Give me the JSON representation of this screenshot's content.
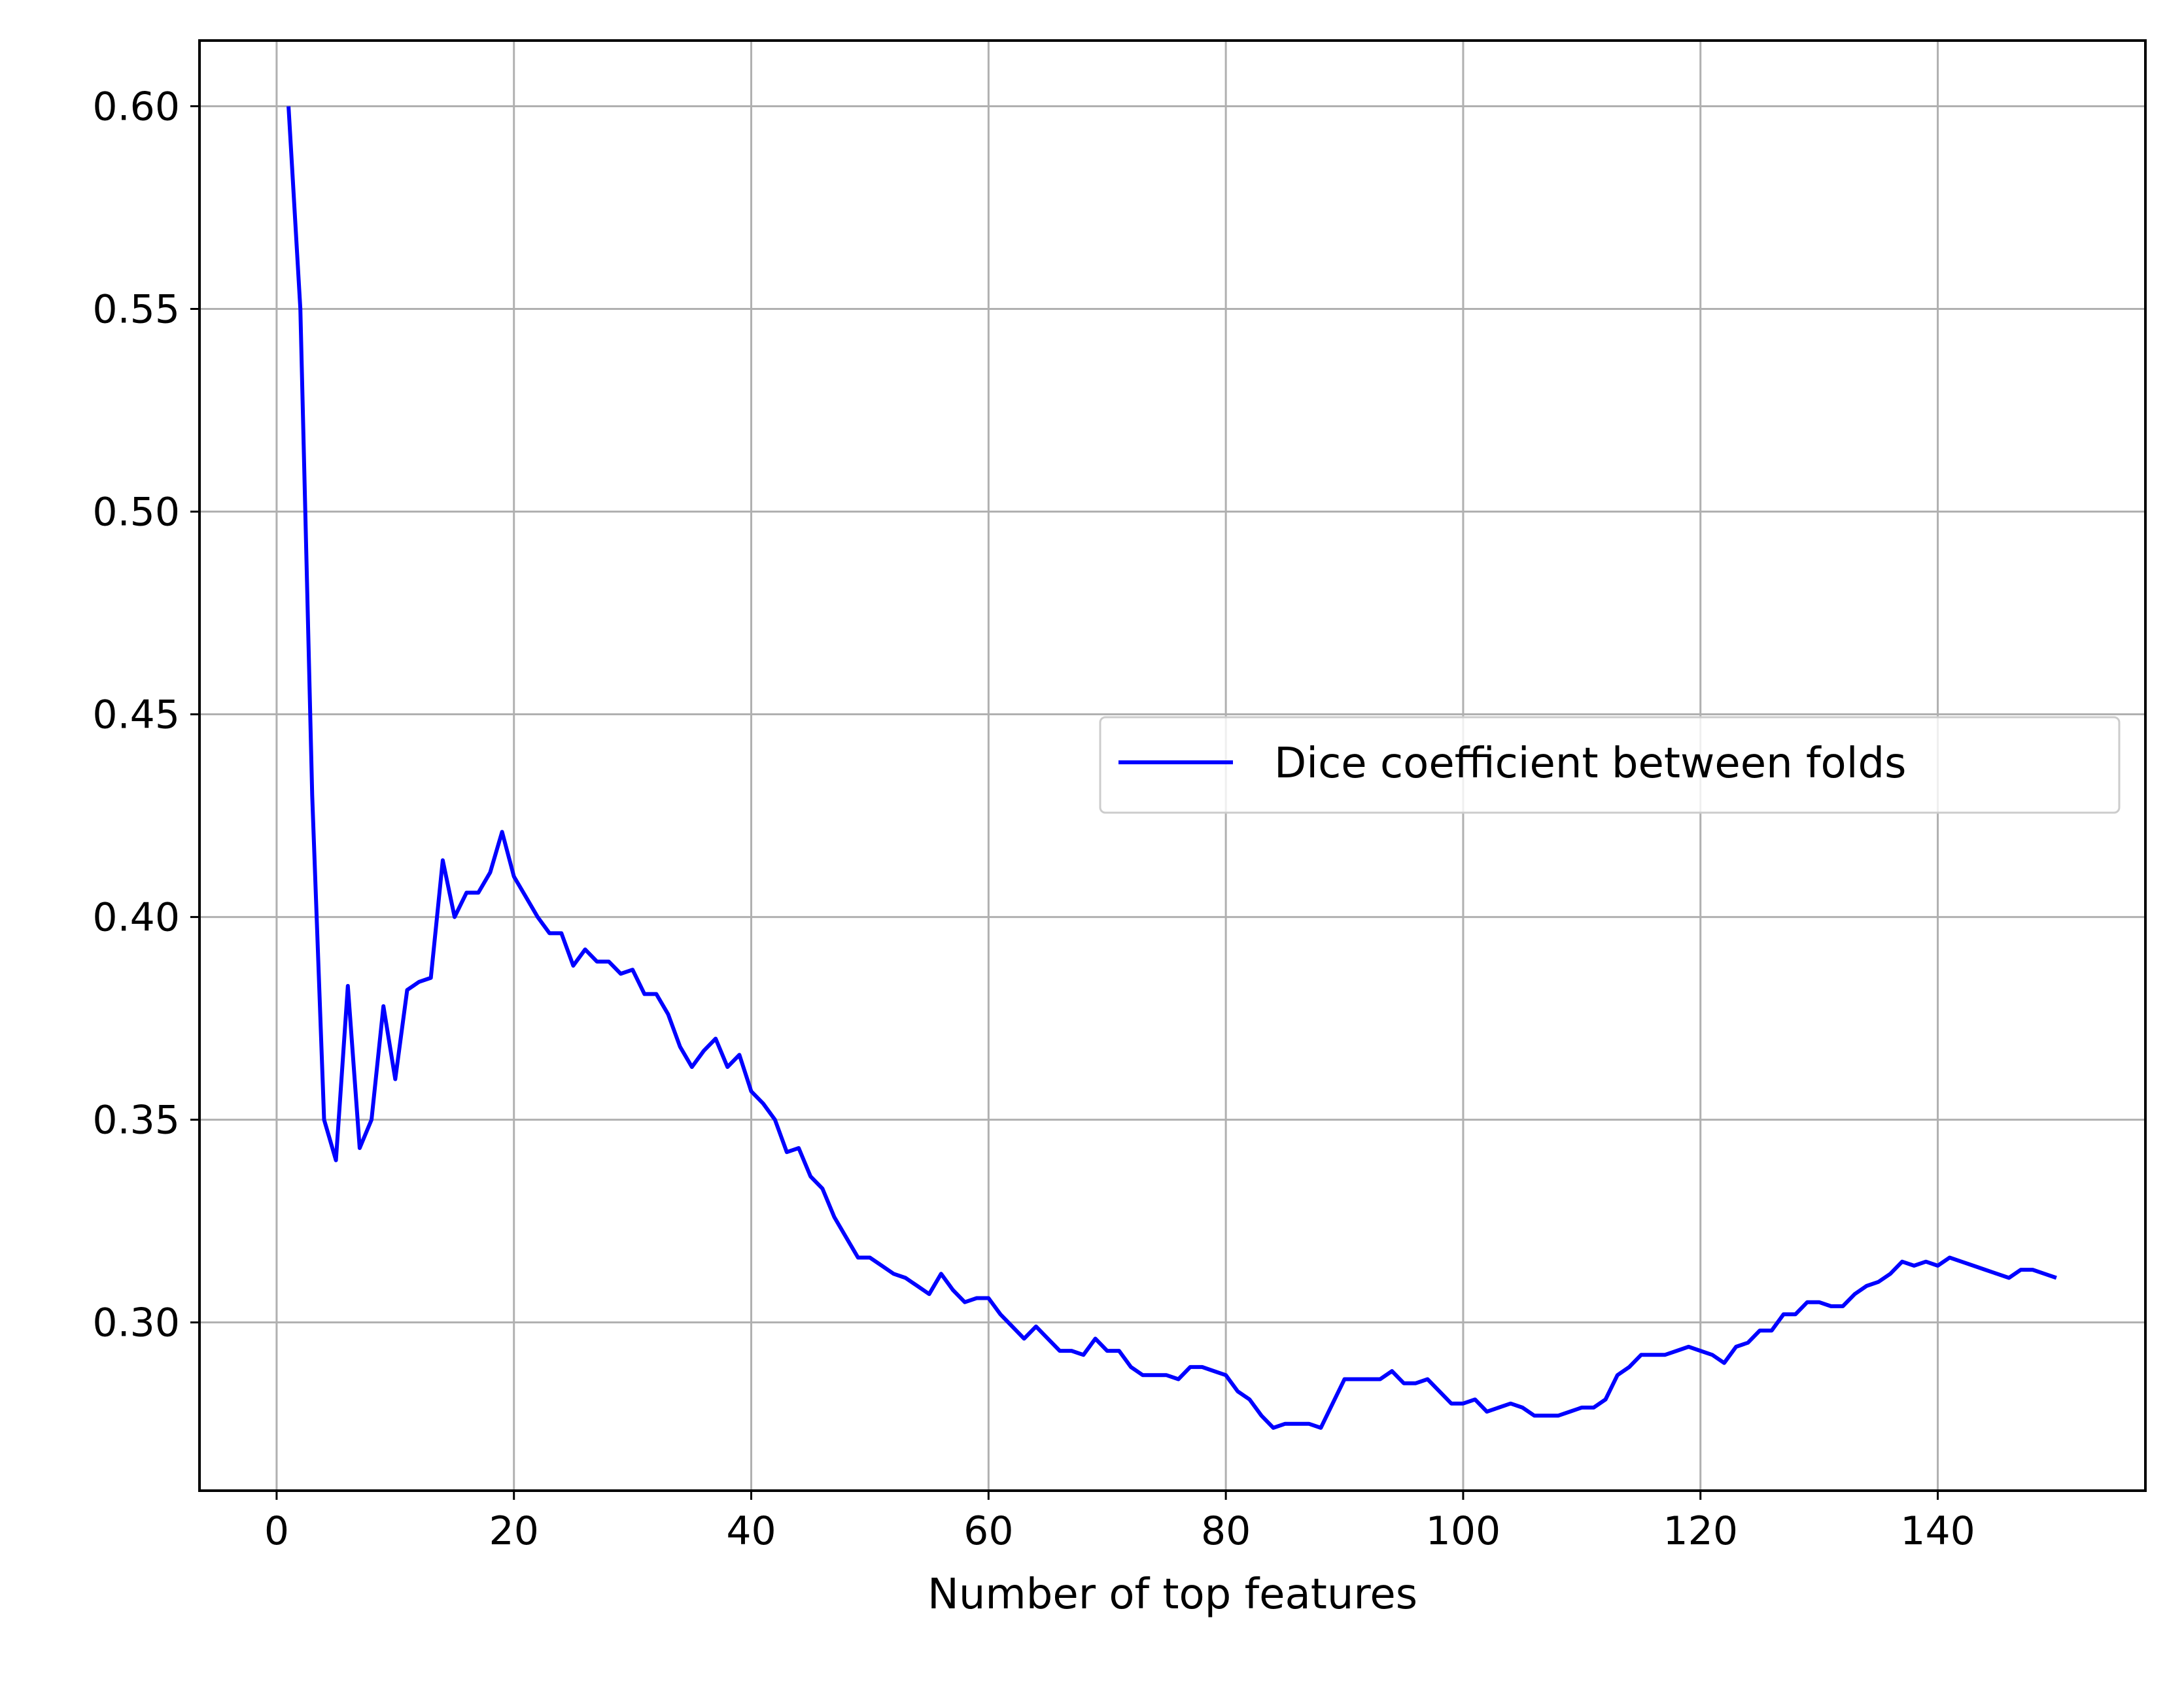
{
  "chart_data": {
    "type": "line",
    "title": "",
    "xlabel": "Number of top features",
    "ylabel": "",
    "xlim": [
      -6.5,
      157.5
    ],
    "ylim": [
      0.2585,
      0.6162
    ],
    "xticks": [
      0,
      20,
      40,
      60,
      80,
      100,
      120,
      140
    ],
    "xtick_labels": [
      "0",
      "20",
      "40",
      "60",
      "80",
      "100",
      "120",
      "140"
    ],
    "yticks": [
      0.3,
      0.35,
      0.4,
      0.45,
      0.5,
      0.55,
      0.6
    ],
    "ytick_labels": [
      "0.30",
      "0.35",
      "0.40",
      "0.45",
      "0.50",
      "0.55",
      "0.60"
    ],
    "grid": true,
    "legend_position": "center-right",
    "series": [
      {
        "name": "Dice coefficient between folds",
        "color": "#0000ff",
        "x": [
          1,
          2,
          3,
          4,
          5,
          6,
          7,
          8,
          9,
          10,
          11,
          12,
          13,
          14,
          15,
          16,
          17,
          18,
          19,
          20,
          21,
          22,
          23,
          24,
          25,
          26,
          27,
          28,
          29,
          30,
          31,
          32,
          33,
          34,
          35,
          36,
          37,
          38,
          39,
          40,
          41,
          42,
          43,
          44,
          45,
          46,
          47,
          48,
          49,
          50,
          51,
          52,
          53,
          54,
          55,
          56,
          57,
          58,
          59,
          60,
          61,
          62,
          63,
          64,
          65,
          66,
          67,
          68,
          69,
          70,
          71,
          72,
          73,
          74,
          75,
          76,
          77,
          78,
          79,
          80,
          81,
          82,
          83,
          84,
          85,
          86,
          87,
          88,
          89,
          90,
          91,
          92,
          93,
          94,
          95,
          96,
          97,
          98,
          99,
          100,
          101,
          102,
          103,
          104,
          105,
          106,
          107,
          108,
          109,
          110,
          111,
          112,
          113,
          114,
          115,
          116,
          117,
          118,
          119,
          120,
          121,
          122,
          123,
          124,
          125,
          126,
          127,
          128,
          129,
          130,
          131,
          132,
          133,
          134,
          135,
          136,
          137,
          138,
          139,
          140,
          141,
          142,
          143,
          144,
          145,
          146,
          147,
          148,
          149,
          150
        ],
        "y": [
          0.6,
          0.55,
          0.43,
          0.35,
          0.34,
          0.383,
          0.343,
          0.35,
          0.378,
          0.36,
          0.382,
          0.384,
          0.385,
          0.414,
          0.4,
          0.406,
          0.406,
          0.411,
          0.421,
          0.41,
          0.405,
          0.4,
          0.396,
          0.396,
          0.388,
          0.392,
          0.389,
          0.389,
          0.386,
          0.387,
          0.381,
          0.381,
          0.376,
          0.368,
          0.363,
          0.367,
          0.37,
          0.363,
          0.366,
          0.357,
          0.354,
          0.35,
          0.342,
          0.343,
          0.336,
          0.333,
          0.326,
          0.321,
          0.316,
          0.316,
          0.314,
          0.312,
          0.311,
          0.309,
          0.307,
          0.312,
          0.308,
          0.305,
          0.306,
          0.306,
          0.302,
          0.299,
          0.296,
          0.299,
          0.296,
          0.293,
          0.293,
          0.292,
          0.296,
          0.293,
          0.293,
          0.289,
          0.287,
          0.287,
          0.287,
          0.286,
          0.289,
          0.289,
          0.288,
          0.287,
          0.283,
          0.281,
          0.277,
          0.274,
          0.275,
          0.275,
          0.275,
          0.274,
          0.28,
          0.286,
          0.286,
          0.286,
          0.286,
          0.288,
          0.285,
          0.285,
          0.286,
          0.283,
          0.28,
          0.28,
          0.281,
          0.278,
          0.279,
          0.28,
          0.279,
          0.277,
          0.277,
          0.277,
          0.278,
          0.279,
          0.279,
          0.281,
          0.287,
          0.289,
          0.292,
          0.292,
          0.292,
          0.293,
          0.294,
          0.293,
          0.292,
          0.29,
          0.294,
          0.295,
          0.298,
          0.298,
          0.302,
          0.302,
          0.305,
          0.305,
          0.304,
          0.304,
          0.307,
          0.309,
          0.31,
          0.312,
          0.315,
          0.314,
          0.315,
          0.314,
          0.316,
          0.315,
          0.314,
          0.313,
          0.312,
          0.311,
          0.313,
          0.313,
          0.312,
          0.311
        ]
      }
    ]
  }
}
